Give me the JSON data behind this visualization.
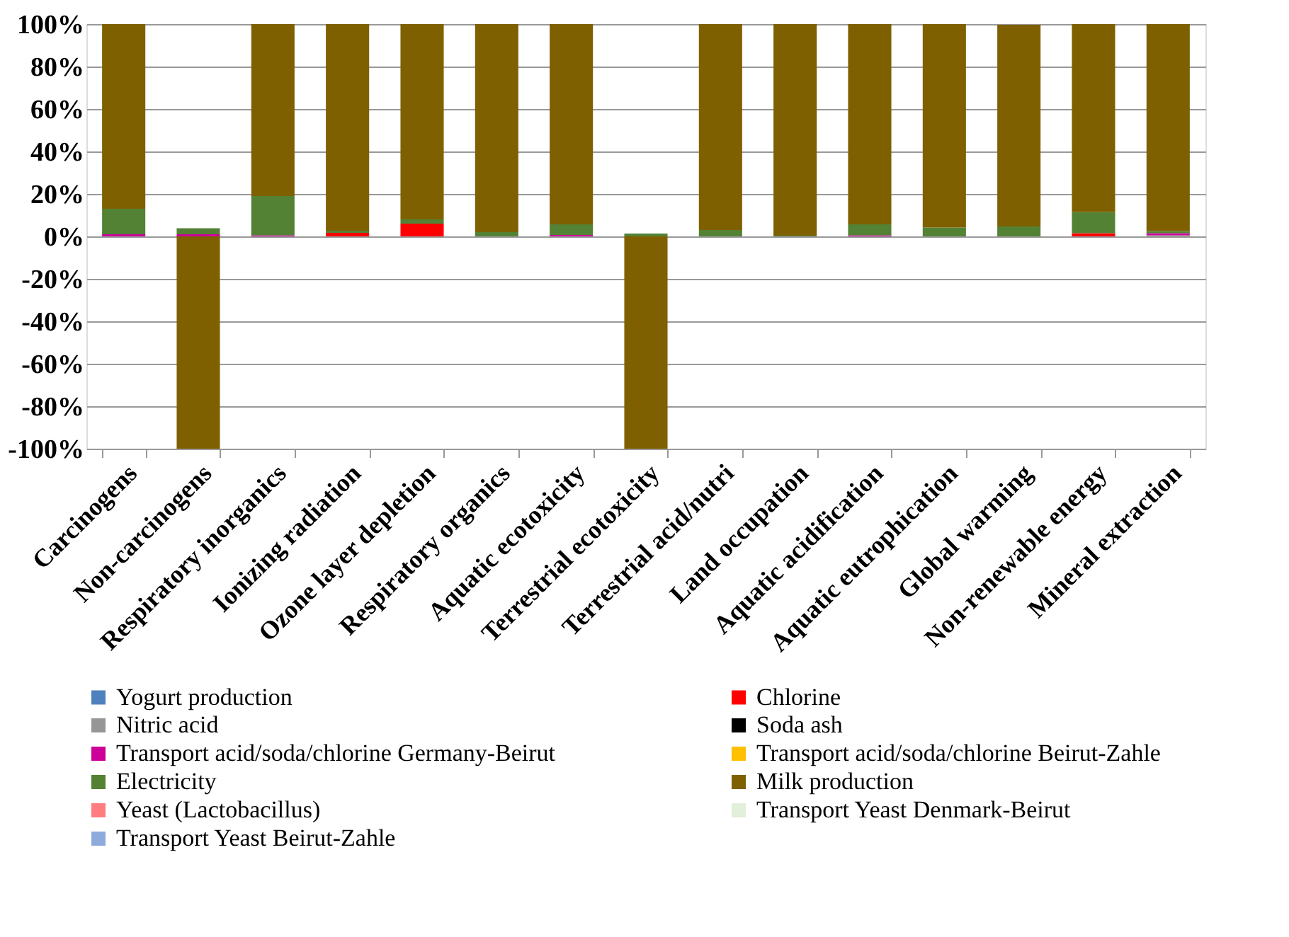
{
  "chart_data": {
    "type": "bar",
    "stacked": true,
    "categories": [
      "Carcinogens",
      "Non-carcinogens",
      "Respiratory inorganics",
      "Ionizing radiation",
      "Ozone layer depletion",
      "Respiratory organics",
      "Aquatic ecotoxicity",
      "Terrestrial ecotoxicity",
      "Terrestrial acid/nutri",
      "Land occupation",
      "Aquatic acidification",
      "Aquatic eutrophication",
      "Global warming",
      "Non-renewable energy",
      "Mineral extraction"
    ],
    "series": [
      {
        "name": "Yogurt production",
        "color": "#4f81bd",
        "values": [
          0,
          0,
          0,
          0,
          0,
          0,
          0,
          0,
          0,
          0,
          0,
          0,
          0,
          0,
          0
        ]
      },
      {
        "name": "Chlorine",
        "color": "#ff0000",
        "values": [
          0,
          0,
          0,
          1.7,
          6,
          0,
          0,
          0,
          0,
          0,
          0,
          0,
          0,
          1.5,
          0
        ]
      },
      {
        "name": "Nitric acid",
        "color": "#969696",
        "values": [
          0,
          0,
          0,
          0,
          0,
          0,
          0,
          0,
          0,
          0,
          0,
          0,
          0,
          0,
          0.5
        ]
      },
      {
        "name": "Soda ash",
        "color": "#000000",
        "values": [
          0,
          0,
          0,
          0,
          0,
          0,
          0,
          0,
          0,
          0,
          0,
          0,
          0,
          0,
          0
        ]
      },
      {
        "name": "Transport acid/soda/chlorine Germany-Beirut",
        "color": "#cc0099",
        "values": [
          1,
          1,
          0.5,
          0,
          0,
          0,
          0.7,
          0,
          0,
          0,
          0.5,
          0,
          null,
          0,
          1
        ]
      },
      {
        "name": "Transport acid/soda/chlorine Beirut-Zahle",
        "color": "#ffc000",
        "values": [
          0,
          0,
          0,
          0,
          0,
          0,
          0,
          0,
          0,
          0,
          0,
          0,
          0,
          0,
          0
        ]
      },
      {
        "name": "Electricity",
        "color": "#548235",
        "values": [
          12,
          2.8,
          18.5,
          1,
          2,
          2,
          5,
          1.3,
          3,
          0.3,
          5.2,
          4.2,
          4.7,
          9.9,
          1
        ]
      },
      {
        "name": "Milk production",
        "color": "#7f6000",
        "values": [
          87,
          -100,
          81,
          97.3,
          92,
          98,
          94.3,
          -100,
          97,
          99.7,
          94.3,
          95.8,
          95,
          88.6,
          97.5
        ]
      },
      {
        "name": "Yeast (Lactobacillus)",
        "color": "#ff7c80",
        "values": [
          0,
          0,
          0,
          0,
          0,
          0,
          0,
          0,
          0,
          0,
          0,
          0,
          0,
          0,
          0
        ]
      },
      {
        "name": "Transport Yeast Denmark-Beirut",
        "color": "#e2efda",
        "values": [
          0,
          0,
          0,
          0,
          0,
          0,
          0,
          0,
          0,
          0,
          0,
          0,
          0,
          0,
          0
        ]
      },
      {
        "name": "Transport Yeast Beirut-Zahle",
        "color": "#8ea9db",
        "values": [
          0,
          0,
          0,
          0,
          0,
          0,
          0,
          0,
          0,
          0,
          0,
          0,
          0,
          0,
          0
        ]
      }
    ],
    "ylim": [
      -100,
      100
    ],
    "yticks": [
      {
        "value": -100,
        "label": "-100%"
      },
      {
        "value": -80,
        "label": "-80%"
      },
      {
        "value": -60,
        "label": "-60%"
      },
      {
        "value": -40,
        "label": "-40%"
      },
      {
        "value": -20,
        "label": "-20%"
      },
      {
        "value": 0,
        "label": "0%"
      },
      {
        "value": 20,
        "label": "20%"
      },
      {
        "value": 40,
        "label": "40%"
      },
      {
        "value": 60,
        "label": "60%"
      },
      {
        "value": 80,
        "label": "80%"
      },
      {
        "value": 100,
        "label": "100%"
      }
    ],
    "grid": "y",
    "legend": "bottom"
  }
}
